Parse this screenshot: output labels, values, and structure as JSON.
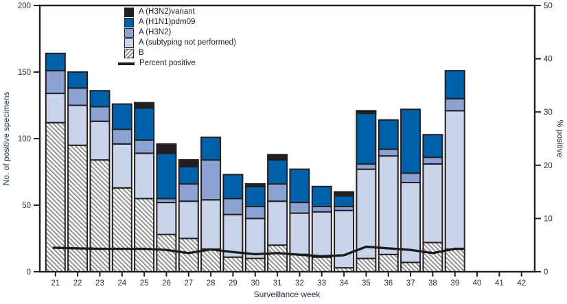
{
  "chart_data": {
    "type": "stacked_bar_line",
    "xlabel": "Surveillance week",
    "ylabel_left": "No. of positive specimens",
    "ylabel_right": "% positive",
    "ylim_left": [
      0,
      200
    ],
    "ylim_right": [
      0,
      50
    ],
    "yticks_left": [
      0,
      50,
      100,
      150,
      200
    ],
    "yticks_right": [
      0,
      10,
      20,
      30,
      40,
      50
    ],
    "grid": false,
    "legend_position": "top-left-inside",
    "categories": [
      "21",
      "22",
      "23",
      "24",
      "25",
      "26",
      "27",
      "28",
      "29",
      "30",
      "31",
      "32",
      "33",
      "34",
      "35",
      "36",
      "37",
      "38",
      "39",
      "40",
      "41",
      "42"
    ],
    "series": [
      {
        "name": "A (H3N2)variant",
        "color": "#231f20",
        "values": [
          0,
          0,
          0,
          0,
          4,
          7,
          5,
          0,
          0,
          2,
          4,
          0,
          0,
          3,
          2,
          0,
          0,
          0,
          0,
          null,
          null,
          null
        ]
      },
      {
        "name": "A (H1N1)pdm09",
        "color": "#0061ab",
        "values": [
          13,
          12,
          12,
          19,
          24,
          34,
          13,
          17,
          18,
          15,
          18,
          25,
          15,
          8,
          38,
          22,
          48,
          17,
          21,
          null,
          null,
          null
        ]
      },
      {
        "name": "A (H3N2)",
        "color": "#8ba2d2",
        "values": [
          17,
          13,
          11,
          11,
          10,
          3,
          13,
          30,
          12,
          9,
          13,
          8,
          4,
          3,
          4,
          5,
          7,
          5,
          9,
          null,
          null,
          null
        ]
      },
      {
        "name": "A (subtyping not performed)",
        "color": "#c9d4ea",
        "values": [
          22,
          30,
          29,
          33,
          34,
          24,
          28,
          37,
          32,
          30,
          33,
          31,
          34,
          43,
          67,
          74,
          60,
          59,
          104,
          null,
          null,
          null
        ]
      },
      {
        "name": "B",
        "color": "hatch",
        "values": [
          112,
          95,
          84,
          63,
          55,
          28,
          25,
          17,
          11,
          10,
          20,
          13,
          11,
          3,
          10,
          13,
          7,
          22,
          17,
          null,
          null,
          null
        ]
      }
    ],
    "line": {
      "name": "Percent positive",
      "color": "#1c1c1c",
      "values": [
        4.5,
        4.4,
        4.3,
        4.3,
        4.3,
        4.1,
        3.5,
        4.2,
        3.7,
        3.3,
        3.5,
        3.2,
        2.9,
        3.1,
        4.7,
        4.4,
        4.1,
        3.5,
        4.3,
        null,
        null,
        null
      ]
    },
    "colors": {
      "axis": "#231f20",
      "tick_text": "#20344a",
      "hatch_stripe": "#8d8d8d",
      "hatch_background": "#ffffff"
    }
  }
}
